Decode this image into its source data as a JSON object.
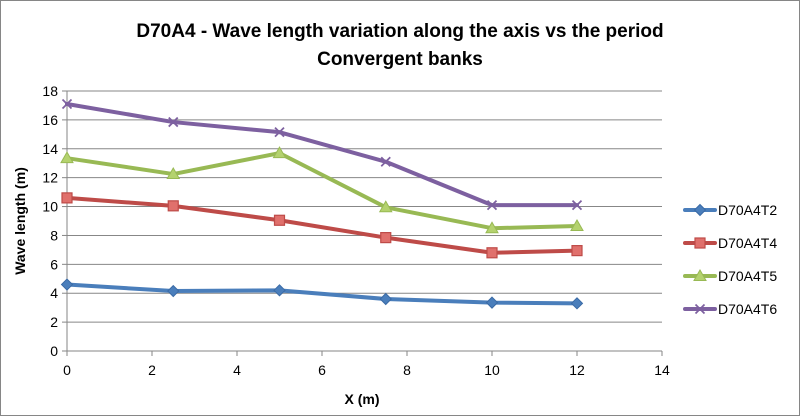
{
  "chart_data": {
    "type": "line",
    "title": "D70A4 - Wave length variation along the axis vs the period",
    "subtitle": "Convergent banks",
    "xlabel": "X (m)",
    "ylabel": "Wave length (m)",
    "xlim": [
      0,
      14
    ],
    "ylim": [
      0,
      18
    ],
    "x_ticks": [
      "0",
      "2",
      "4",
      "6",
      "8",
      "10",
      "12",
      "14"
    ],
    "y_ticks": [
      "0",
      "2",
      "4",
      "6",
      "8",
      "10",
      "12",
      "14",
      "16",
      "18"
    ],
    "grid": "horizontal major gridlines",
    "legend_position": "right",
    "x": [
      0,
      2.5,
      5,
      7.5,
      10,
      12
    ],
    "series": [
      {
        "name": "D70A4T2",
        "color": "#4a7ebb",
        "marker": "diamond",
        "values": [
          4.6,
          4.15,
          4.2,
          3.6,
          3.35,
          3.3
        ]
      },
      {
        "name": "D70A4T4",
        "color": "#be4b48",
        "marker": "square",
        "values": [
          10.6,
          10.05,
          9.05,
          7.85,
          6.8,
          6.95
        ]
      },
      {
        "name": "D70A4T5",
        "color": "#98b954",
        "marker": "triangle",
        "values": [
          13.35,
          12.25,
          13.7,
          9.95,
          8.5,
          8.65
        ]
      },
      {
        "name": "D70A4T6",
        "color": "#7d60a0",
        "marker": "x",
        "values": [
          17.1,
          15.85,
          15.15,
          13.1,
          10.1,
          10.1
        ]
      }
    ]
  }
}
